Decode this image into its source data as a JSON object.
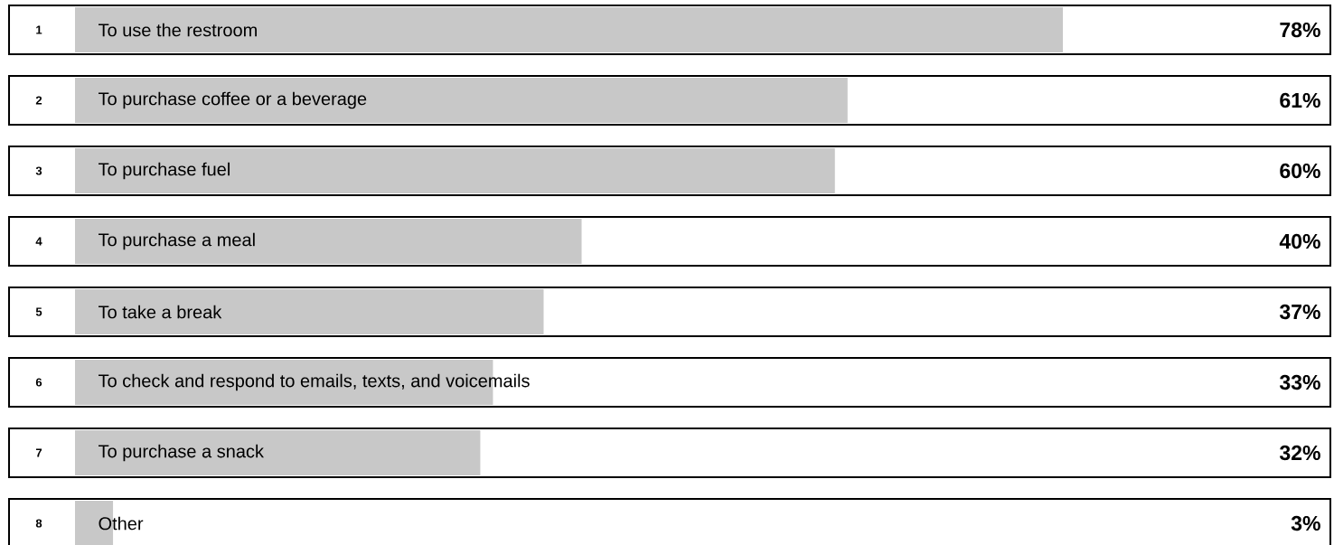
{
  "chart_data": {
    "type": "bar",
    "orientation": "horizontal",
    "color": "#c8c8c8",
    "categories": [
      "To use the restroom",
      "To purchase coffee or a beverage",
      "To purchase fuel",
      "To purchase a meal",
      "To take a break",
      "To check and respond to emails, texts, and voicemails",
      "To purchase a snack",
      "Other"
    ],
    "values": [
      78,
      61,
      60,
      40,
      37,
      33,
      32,
      3
    ],
    "value_labels": [
      "78%",
      "61%",
      "60%",
      "40%",
      "37%",
      "33%",
      "32%",
      "3%"
    ],
    "annotations": [
      "1",
      "2",
      "3",
      "4",
      "5",
      "6",
      "7",
      "8"
    ]
  }
}
